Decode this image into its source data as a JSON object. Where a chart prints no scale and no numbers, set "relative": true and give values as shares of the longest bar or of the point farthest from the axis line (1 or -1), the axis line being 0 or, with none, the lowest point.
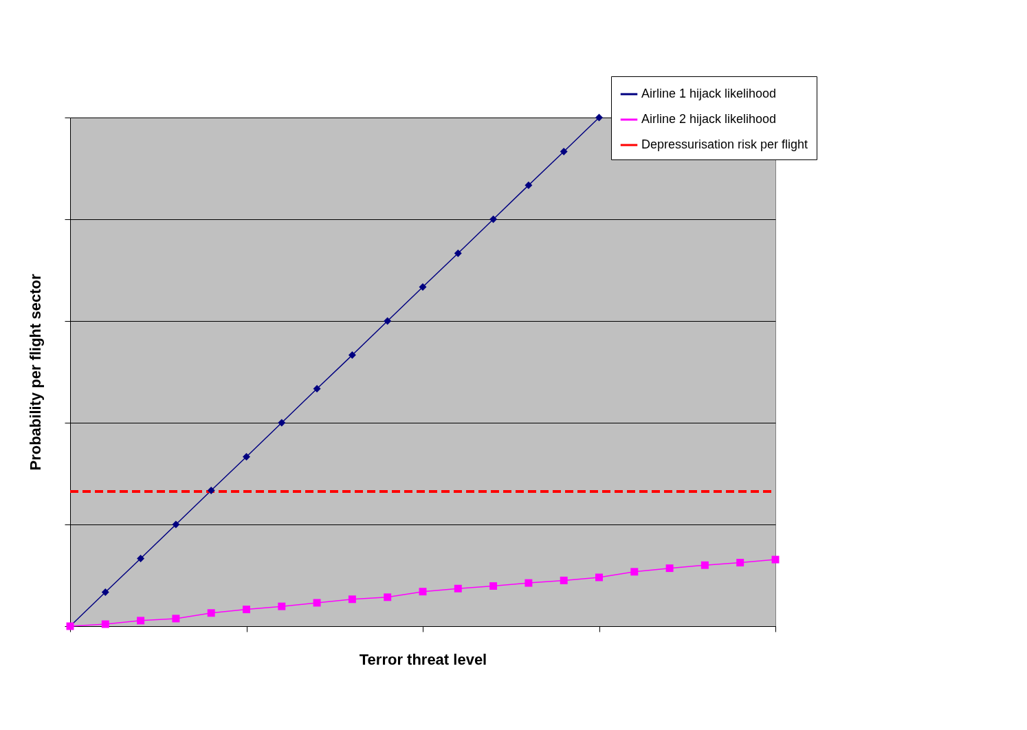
{
  "chart_data": {
    "type": "line",
    "relative": true,
    "xlabel": "Terror threat level",
    "ylabel": "Probability per flight sector",
    "categories": [
      null,
      null,
      null,
      null,
      null,
      null,
      null,
      null,
      null,
      null,
      null,
      null,
      null,
      null,
      null,
      null,
      null,
      null,
      null,
      null,
      null
    ],
    "series": [
      {
        "name": "Airline 1 hijack likelihood",
        "color": "#000080",
        "marker": "diamond",
        "values": [
          0,
          0.067,
          0.133,
          0.2,
          0.267,
          0.333,
          0.4,
          0.467,
          0.533,
          0.6,
          0.667,
          0.733,
          0.8,
          0.867,
          0.933,
          1,
          null,
          null,
          null,
          null,
          null
        ]
      },
      {
        "name": "Airline 2 hijack likelihood",
        "color": "#ff00ff",
        "marker": "square",
        "values": [
          0,
          0.004,
          0.011,
          0.015,
          0.026,
          0.033,
          0.039,
          0.046,
          0.053,
          0.057,
          0.068,
          0.074,
          0.079,
          0.085,
          0.09,
          0.096,
          0.107,
          0.114,
          0.12,
          0.125,
          0.131
        ]
      },
      {
        "name": "Depressurisation risk per flight",
        "color": "#ff0000",
        "marker": "none",
        "line_style": "dashed",
        "values": [
          0.265,
          0.265,
          0.265,
          0.265,
          0.265,
          0.265,
          0.265,
          0.265,
          0.265,
          0.265,
          0.265,
          0.265,
          0.265,
          0.265,
          0.265,
          0.265,
          0.265,
          0.265,
          0.265,
          0.265,
          0.265
        ]
      }
    ],
    "grid": "y",
    "legend": "top right"
  }
}
